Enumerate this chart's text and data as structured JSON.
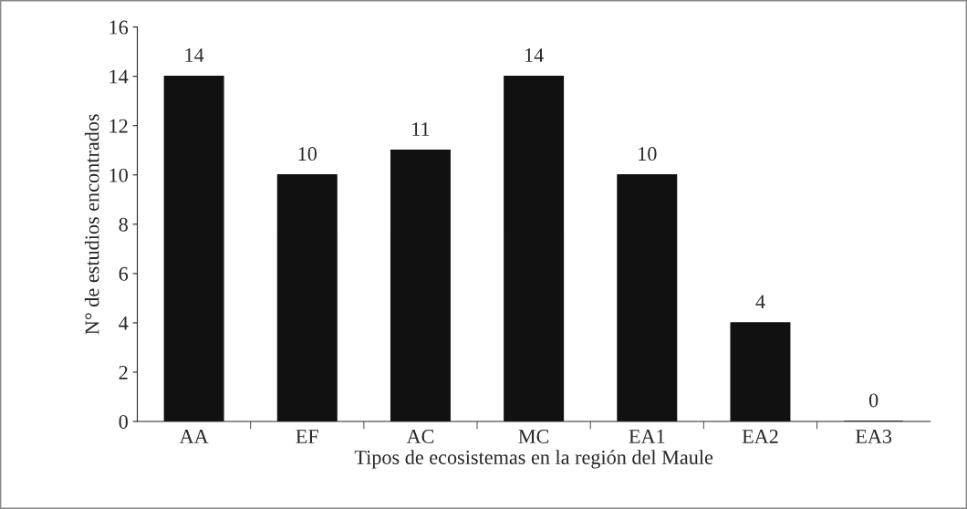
{
  "chart_data": {
    "type": "bar",
    "xlabel": "Tipos de ecosistemas en la región del Maule",
    "ylabel": "N° de estudios encontrados",
    "categories": [
      "AA",
      "EF",
      "AC",
      "MC",
      "EA1",
      "EA2",
      "EA3"
    ],
    "values": [
      14,
      10,
      11,
      14,
      10,
      4,
      0
    ],
    "color": "#111111",
    "ylim": [
      0,
      16
    ],
    "yticks": [
      0,
      2,
      4,
      6,
      8,
      10,
      12,
      14,
      16
    ],
    "grid": false,
    "data_labels": true
  }
}
